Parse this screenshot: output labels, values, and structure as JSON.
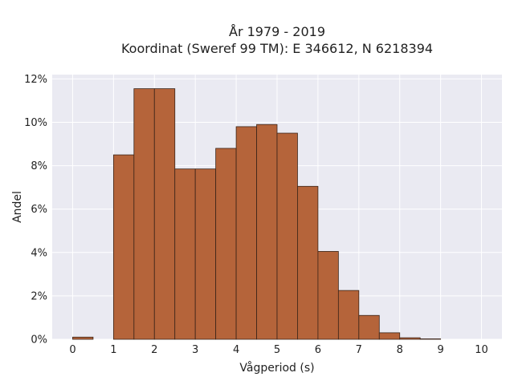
{
  "chart_data": {
    "type": "bar",
    "title_lines": [
      "År 1979 - 2019",
      "Koordinat (Sweref 99 TM): E 346612, N 6218394"
    ],
    "xlabel": "Vågperiod (s)",
    "ylabel": "Andel",
    "xlim": [
      -0.5,
      10.5
    ],
    "ylim": [
      0,
      12.2
    ],
    "x_ticks": [
      0,
      1,
      2,
      3,
      4,
      5,
      6,
      7,
      8,
      9,
      10
    ],
    "x_tick_labels": [
      "0",
      "1",
      "2",
      "3",
      "4",
      "5",
      "6",
      "7",
      "8",
      "9",
      "10"
    ],
    "y_ticks": [
      0,
      2,
      4,
      6,
      8,
      10,
      12
    ],
    "y_tick_labels": [
      "0%",
      "2%",
      "4%",
      "6%",
      "8%",
      "10%",
      "12%"
    ],
    "bin_width": 0.5,
    "bins": [
      {
        "start": 0.0,
        "value": 0.1
      },
      {
        "start": 0.5,
        "value": 0.0
      },
      {
        "start": 1.0,
        "value": 8.5
      },
      {
        "start": 1.5,
        "value": 11.55
      },
      {
        "start": 2.0,
        "value": 11.55
      },
      {
        "start": 2.5,
        "value": 7.85
      },
      {
        "start": 3.0,
        "value": 7.85
      },
      {
        "start": 3.5,
        "value": 8.8
      },
      {
        "start": 4.0,
        "value": 9.8
      },
      {
        "start": 4.5,
        "value": 9.9
      },
      {
        "start": 5.0,
        "value": 9.5
      },
      {
        "start": 5.5,
        "value": 7.05
      },
      {
        "start": 6.0,
        "value": 4.05
      },
      {
        "start": 6.5,
        "value": 2.25
      },
      {
        "start": 7.0,
        "value": 1.1
      },
      {
        "start": 7.5,
        "value": 0.3
      },
      {
        "start": 8.0,
        "value": 0.07
      },
      {
        "start": 8.5,
        "value": 0.02
      },
      {
        "start": 9.0,
        "value": 0.0
      },
      {
        "start": 9.5,
        "value": 0.0
      }
    ],
    "grid": true,
    "colors": {
      "bar_fill": "#b5643a",
      "bar_edge": "#3a2418",
      "plot_bg": "#eaeaf2",
      "grid": "#ffffff"
    }
  }
}
